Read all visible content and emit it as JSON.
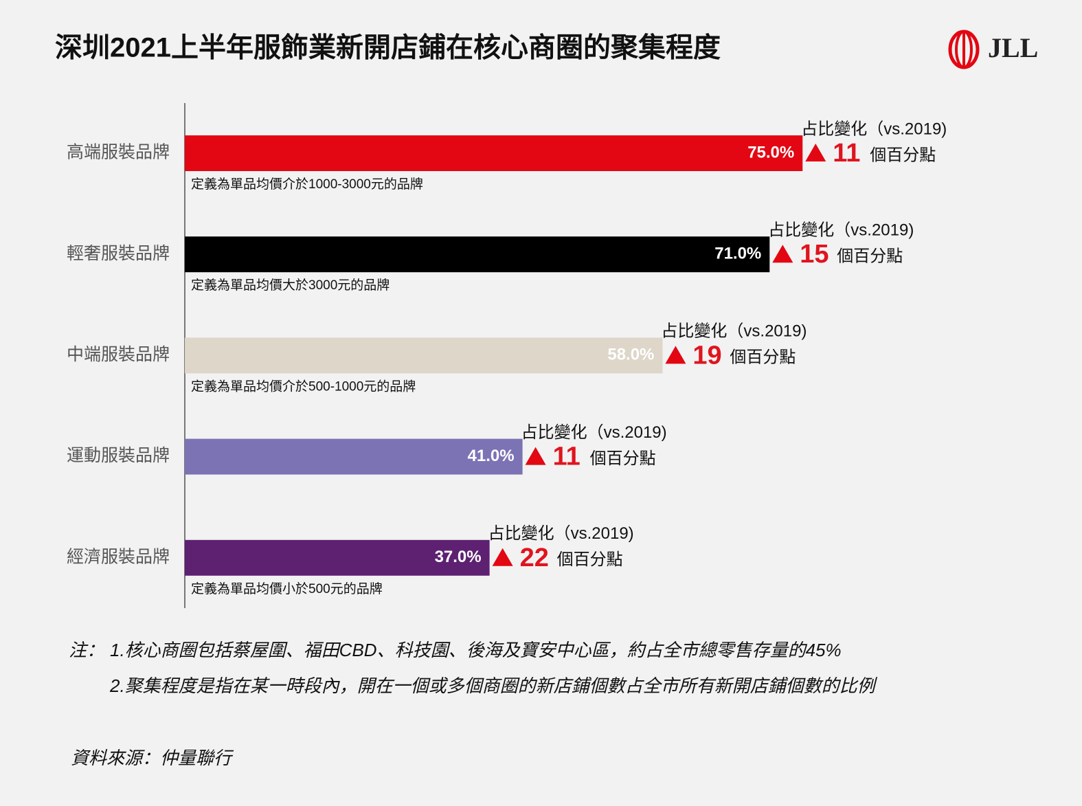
{
  "chart_data": {
    "type": "bar",
    "orientation": "horizontal",
    "title": "深圳2021上半年服飾業新開店鋪在核心商圈的聚集程度",
    "logo": "JLL",
    "categories": [
      "高端服裝品牌",
      "輕奢服裝品牌",
      "中端服裝品牌",
      "運動服裝品牌",
      "經濟服裝品牌"
    ],
    "values": [
      75,
      71,
      58,
      41,
      37
    ],
    "value_labels": [
      "75.0%",
      "71.0%",
      "58.0%",
      "41.0%",
      "37.0%"
    ],
    "colors": [
      "#e30613",
      "#000000",
      "#ddd6c9",
      "#7b73b4",
      "#5e2172"
    ],
    "definitions": [
      "定義為單品均價介於1000-3000元的品牌",
      "定義為單品均價大於3000元的品牌",
      "定義為單品均價介於500-1000元的品牌",
      null,
      "定義為單品均價小於500元的品牌"
    ],
    "change_label": "占比變化（vs.2019)",
    "changes": [
      11,
      15,
      19,
      11,
      22
    ],
    "change_unit": "個百分點",
    "note_prefix": "注：",
    "footnotes": [
      "1.核心商圈包括蔡屋圍、福田CBD、科技園、後海及寶安中心區，約占全市總零售存量的45%",
      "2.聚集程度是指在某一時段內，開在一個或多個商圈的新店鋪個數占全市所有新開店鋪個數的比例"
    ],
    "source": "資料來源：仲量聯行"
  }
}
